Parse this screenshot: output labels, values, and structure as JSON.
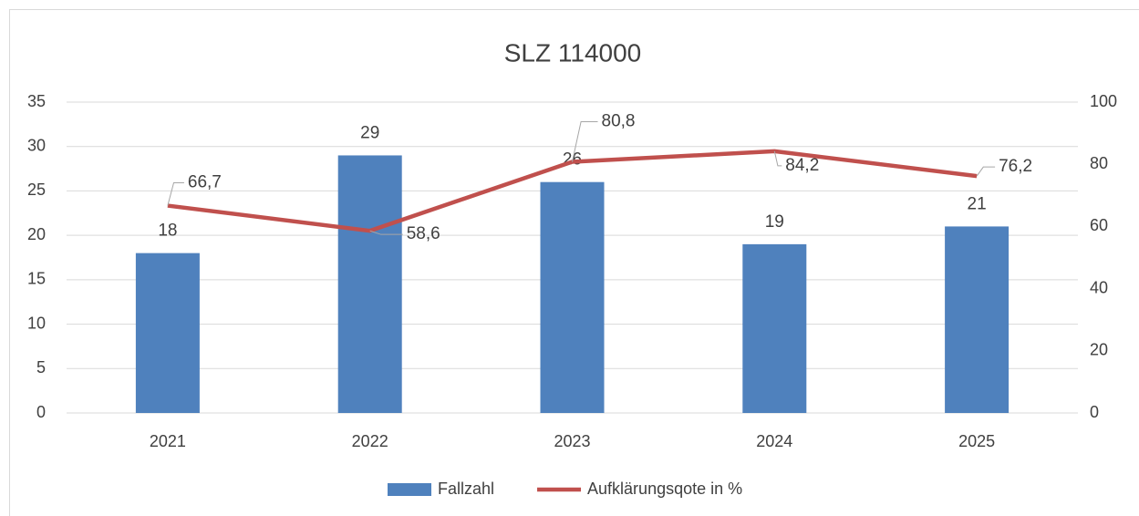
{
  "chart_data": {
    "type": "bar",
    "title": "SLZ 114000",
    "categories": [
      "2021",
      "2022",
      "2023",
      "2024",
      "2025"
    ],
    "series": [
      {
        "name": "Fallzahl",
        "type": "bar",
        "color": "#4f81bd",
        "values": [
          18,
          29,
          26,
          19,
          21
        ]
      },
      {
        "name": "Aufklärungsqote in %",
        "type": "line",
        "axis": "y2",
        "color": "#c0504d",
        "values": [
          66.7,
          58.6,
          80.8,
          84.2,
          76.2
        ],
        "value_labels": [
          "66,7",
          "58,6",
          "80,8",
          "84,2",
          "76,2"
        ]
      }
    ],
    "ylim": [
      0,
      35
    ],
    "yticks": [
      0,
      5,
      10,
      15,
      20,
      25,
      30,
      35
    ],
    "y2lim": [
      0,
      100
    ],
    "y2ticks": [
      0,
      20,
      40,
      60,
      80,
      100
    ],
    "grid": true,
    "legend": "bottom"
  }
}
